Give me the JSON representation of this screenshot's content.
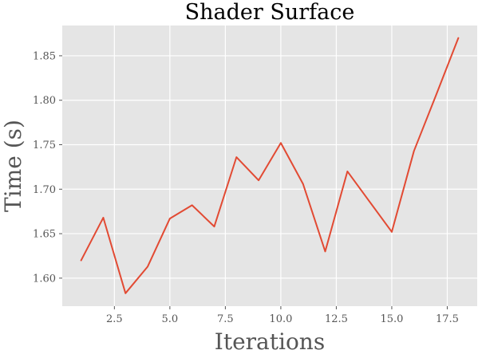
{
  "chart_data": {
    "type": "line",
    "title": "Shader Surface",
    "xlabel": "Iterations",
    "ylabel": "Time (s)",
    "xlim": [
      0.15,
      18.85
    ],
    "ylim": [
      1.5685,
      1.884
    ],
    "xticks": [
      2.5,
      5.0,
      7.5,
      10.0,
      12.5,
      15.0,
      17.5
    ],
    "xtick_labels": [
      "2.5",
      "5.0",
      "7.5",
      "10.0",
      "12.5",
      "15.0",
      "17.5"
    ],
    "yticks": [
      1.6,
      1.65,
      1.7,
      1.75,
      1.8,
      1.85
    ],
    "ytick_labels": [
      "1.60",
      "1.65",
      "1.70",
      "1.75",
      "1.80",
      "1.85"
    ],
    "grid": true,
    "series": [
      {
        "x": [
          1,
          2,
          3,
          4,
          5,
          6,
          7,
          8,
          9,
          10,
          11,
          12,
          13,
          14,
          15,
          16,
          17,
          18
        ],
        "y": [
          1.62,
          1.668,
          1.583,
          1.613,
          1.667,
          1.682,
          1.658,
          1.736,
          1.71,
          1.752,
          1.706,
          1.63,
          1.72,
          1.686,
          1.652,
          1.743,
          1.806,
          1.87
        ]
      }
    ],
    "colors": {
      "background": "#e5e5e5",
      "grid": "#ffffff",
      "line": "#e24a33"
    }
  }
}
